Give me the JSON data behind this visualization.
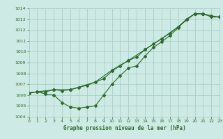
{
  "title": "Graphe pression niveau de la mer (hPa)",
  "bg_color": "#ceeae4",
  "grid_color": "#aacfc8",
  "line_color": "#2d6a2d",
  "x_min": 0,
  "x_max": 23,
  "y_min": 1004,
  "y_max": 1014,
  "line1_jagged": [
    [
      0,
      1006.2
    ],
    [
      1,
      1006.3
    ],
    [
      2,
      1006.1
    ],
    [
      3,
      1006.0
    ],
    [
      4,
      1005.3
    ],
    [
      5,
      1004.9
    ],
    [
      6,
      1004.8
    ],
    [
      7,
      1004.9
    ],
    [
      8,
      1005.0
    ],
    [
      9,
      1006.0
    ],
    [
      10,
      1007.0
    ],
    [
      11,
      1007.8
    ],
    [
      12,
      1008.5
    ],
    [
      13,
      1008.7
    ],
    [
      14,
      1009.6
    ],
    [
      15,
      1010.4
    ],
    [
      16,
      1010.9
    ],
    [
      17,
      1011.5
    ],
    [
      18,
      1012.2
    ],
    [
      19,
      1013.0
    ],
    [
      20,
      1013.5
    ],
    [
      21,
      1013.5
    ],
    [
      22,
      1013.2
    ],
    [
      23,
      1013.2
    ]
  ],
  "line2_upper": [
    [
      0,
      1006.2
    ],
    [
      1,
      1006.3
    ],
    [
      2,
      1006.3
    ],
    [
      3,
      1006.5
    ],
    [
      4,
      1006.4
    ],
    [
      5,
      1006.5
    ],
    [
      6,
      1006.7
    ],
    [
      7,
      1006.9
    ],
    [
      8,
      1007.2
    ],
    [
      9,
      1007.5
    ],
    [
      10,
      1008.2
    ],
    [
      11,
      1008.7
    ],
    [
      12,
      1009.2
    ],
    [
      13,
      1009.5
    ],
    [
      14,
      1010.2
    ],
    [
      15,
      1010.7
    ],
    [
      16,
      1011.2
    ],
    [
      17,
      1011.7
    ],
    [
      18,
      1012.3
    ],
    [
      19,
      1013.0
    ],
    [
      20,
      1013.5
    ],
    [
      21,
      1013.5
    ],
    [
      22,
      1013.3
    ],
    [
      23,
      1013.2
    ]
  ],
  "line3_smooth": [
    [
      0,
      1006.2
    ],
    [
      3,
      1006.5
    ],
    [
      5,
      1006.5
    ],
    [
      8,
      1007.2
    ],
    [
      10,
      1008.3
    ],
    [
      12,
      1009.2
    ],
    [
      14,
      1010.2
    ],
    [
      16,
      1011.2
    ],
    [
      18,
      1012.3
    ],
    [
      20,
      1013.5
    ],
    [
      21,
      1013.5
    ],
    [
      22,
      1013.3
    ]
  ]
}
